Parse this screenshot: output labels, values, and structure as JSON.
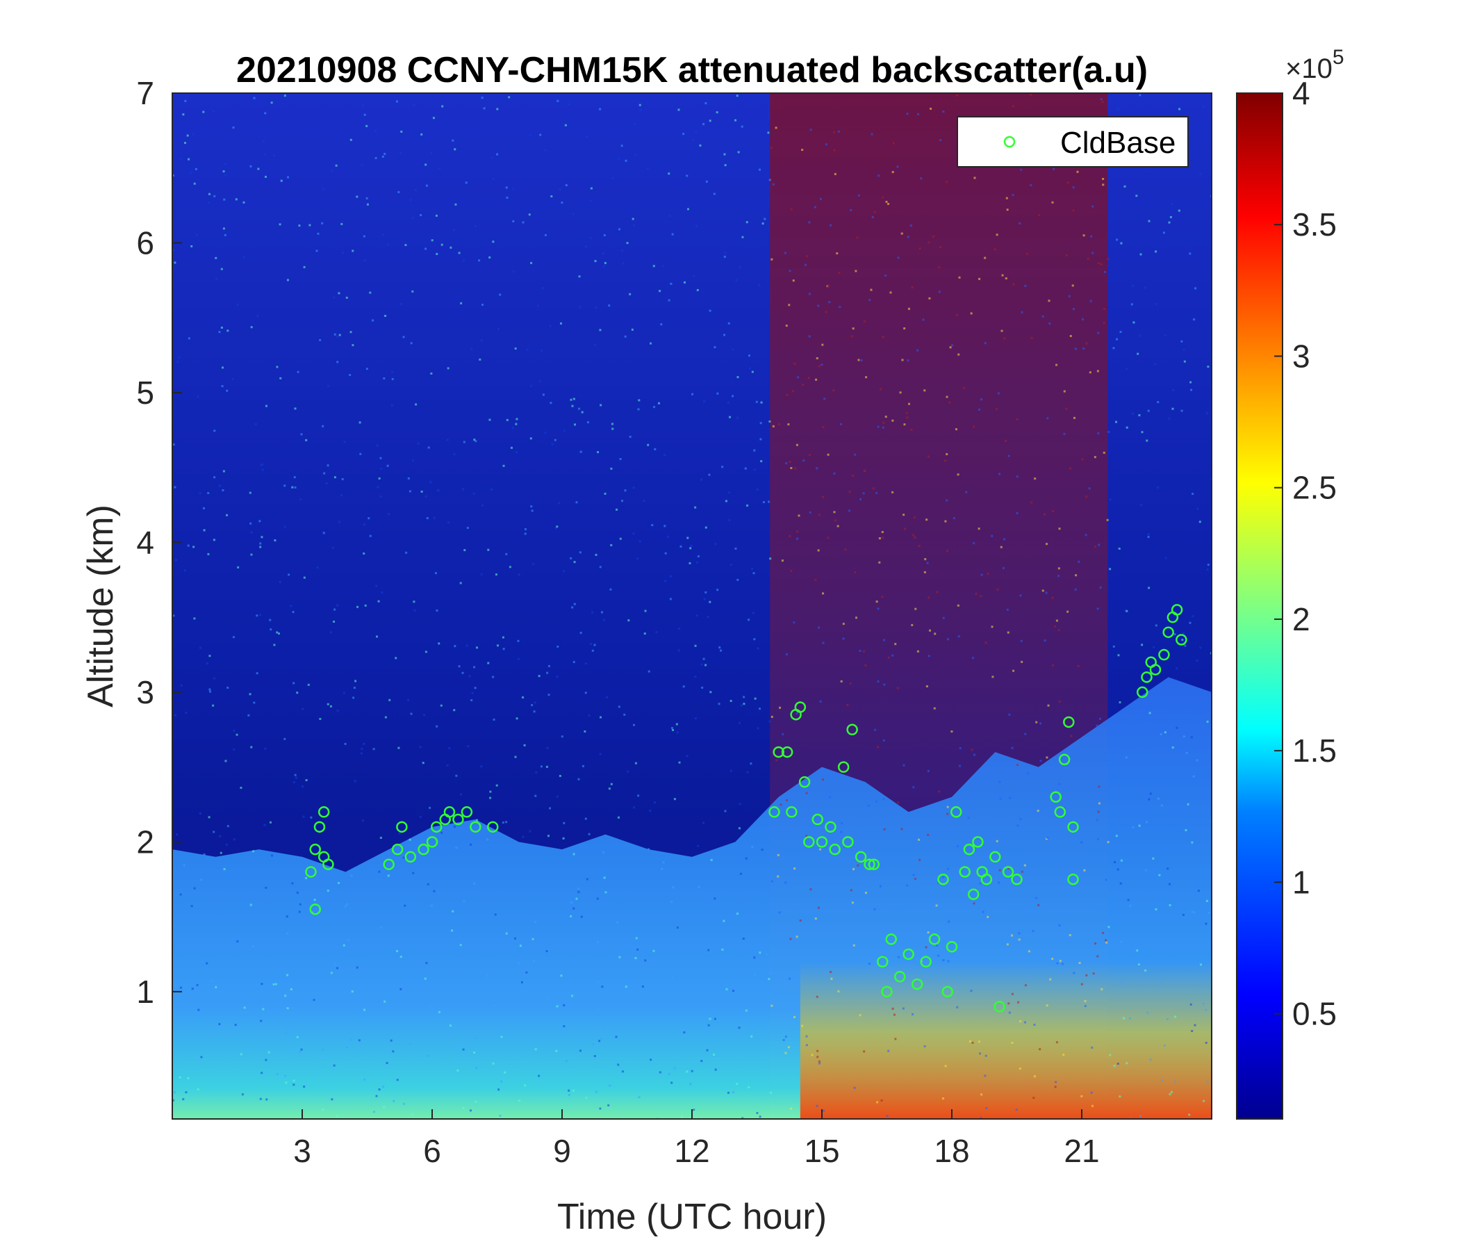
{
  "chart_data": {
    "type": "heatmap",
    "title": "20210908 CCNY-CHM15K attenuated backscatter(a.u)",
    "xlabel": "Time (UTC hour)",
    "ylabel": "Altitude (km)",
    "xlim": [
      0,
      24
    ],
    "ylim": [
      0.15,
      7
    ],
    "xticks": [
      3,
      6,
      9,
      12,
      15,
      18,
      21
    ],
    "yticks": [
      1,
      2,
      3,
      4,
      5,
      6,
      7
    ],
    "colorbar": {
      "colormap": "jet",
      "range": [
        0.1,
        4
      ],
      "ticks": [
        0.5,
        1,
        1.5,
        2,
        2.5,
        3,
        3.5,
        4
      ],
      "exponent_label": "×10",
      "exponent": "5",
      "colors": [
        "#00008f",
        "#0000ff",
        "#0080ff",
        "#00ffff",
        "#80ff80",
        "#ffff00",
        "#ff8000",
        "#ff0000",
        "#800000"
      ]
    },
    "legend": {
      "position": "top-right",
      "entries": [
        "CldBase"
      ],
      "marker_color": "#33ff33"
    },
    "features": {
      "boundary_layer_top_km": [
        [
          0,
          1.95
        ],
        [
          1,
          1.9
        ],
        [
          2,
          1.95
        ],
        [
          3,
          1.9
        ],
        [
          4,
          1.8
        ],
        [
          5,
          1.95
        ],
        [
          6,
          2.1
        ],
        [
          7,
          2.15
        ],
        [
          8,
          2.0
        ],
        [
          9,
          1.95
        ],
        [
          10,
          2.05
        ],
        [
          11,
          1.95
        ],
        [
          12,
          1.9
        ],
        [
          13,
          2.0
        ],
        [
          14,
          2.3
        ],
        [
          15,
          2.5
        ],
        [
          16,
          2.4
        ],
        [
          17,
          2.2
        ],
        [
          18,
          2.3
        ],
        [
          19,
          2.6
        ],
        [
          20,
          2.5
        ],
        [
          21,
          2.7
        ],
        [
          22,
          2.9
        ],
        [
          23,
          3.1
        ],
        [
          24,
          3.0
        ]
      ],
      "noisy_high_signal_hours": [
        13.8,
        21.6
      ]
    },
    "series": [
      {
        "name": "CldBase",
        "points": [
          [
            3.2,
            1.8
          ],
          [
            3.3,
            1.95
          ],
          [
            3.3,
            1.55
          ],
          [
            3.4,
            2.1
          ],
          [
            3.5,
            2.2
          ],
          [
            3.5,
            1.9
          ],
          [
            3.6,
            1.85
          ],
          [
            5.0,
            1.85
          ],
          [
            5.2,
            1.95
          ],
          [
            5.3,
            2.1
          ],
          [
            5.5,
            1.9
          ],
          [
            5.8,
            1.95
          ],
          [
            6.0,
            2.0
          ],
          [
            6.1,
            2.1
          ],
          [
            6.3,
            2.15
          ],
          [
            6.4,
            2.2
          ],
          [
            6.6,
            2.15
          ],
          [
            6.8,
            2.2
          ],
          [
            7.0,
            2.1
          ],
          [
            7.4,
            2.1
          ],
          [
            13.9,
            2.2
          ],
          [
            14.0,
            2.6
          ],
          [
            14.2,
            2.6
          ],
          [
            14.3,
            2.2
          ],
          [
            14.4,
            2.85
          ],
          [
            14.5,
            2.9
          ],
          [
            14.6,
            2.4
          ],
          [
            14.7,
            2.0
          ],
          [
            14.9,
            2.15
          ],
          [
            15.0,
            2.0
          ],
          [
            15.2,
            2.1
          ],
          [
            15.3,
            1.95
          ],
          [
            15.5,
            2.5
          ],
          [
            15.6,
            2.0
          ],
          [
            15.7,
            2.75
          ],
          [
            15.9,
            1.9
          ],
          [
            16.1,
            1.85
          ],
          [
            16.2,
            1.85
          ],
          [
            16.4,
            1.2
          ],
          [
            16.5,
            1.0
          ],
          [
            16.6,
            1.35
          ],
          [
            16.8,
            1.1
          ],
          [
            17.0,
            1.25
          ],
          [
            17.2,
            1.05
          ],
          [
            17.4,
            1.2
          ],
          [
            17.6,
            1.35
          ],
          [
            17.8,
            1.75
          ],
          [
            17.9,
            1.0
          ],
          [
            18.0,
            1.3
          ],
          [
            18.1,
            2.2
          ],
          [
            18.3,
            1.8
          ],
          [
            18.4,
            1.95
          ],
          [
            18.5,
            1.65
          ],
          [
            18.6,
            2.0
          ],
          [
            18.7,
            1.8
          ],
          [
            18.8,
            1.75
          ],
          [
            19.0,
            1.9
          ],
          [
            19.1,
            0.9
          ],
          [
            19.3,
            1.8
          ],
          [
            19.5,
            1.75
          ],
          [
            20.4,
            2.3
          ],
          [
            20.5,
            2.2
          ],
          [
            20.6,
            2.55
          ],
          [
            20.7,
            2.8
          ],
          [
            20.8,
            2.1
          ],
          [
            20.8,
            1.75
          ],
          [
            22.4,
            3.0
          ],
          [
            22.5,
            3.1
          ],
          [
            22.6,
            3.2
          ],
          [
            22.7,
            3.15
          ],
          [
            22.9,
            3.25
          ],
          [
            23.0,
            3.4
          ],
          [
            23.1,
            3.5
          ],
          [
            23.2,
            3.55
          ],
          [
            23.3,
            3.35
          ]
        ]
      }
    ]
  }
}
